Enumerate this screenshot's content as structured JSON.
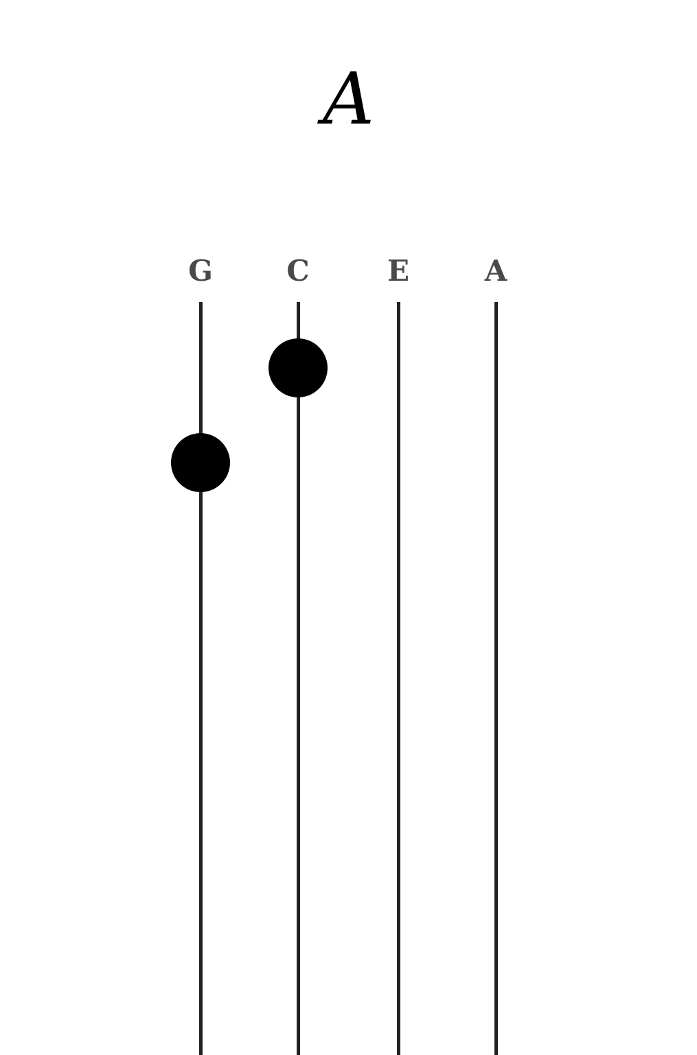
{
  "chord": {
    "name": "A"
  },
  "strings": [
    {
      "label": "G"
    },
    {
      "label": "C"
    },
    {
      "label": "E"
    },
    {
      "label": "A"
    }
  ],
  "fingers": [
    {
      "string": "G",
      "fret": 2
    },
    {
      "string": "C",
      "fret": 1
    }
  ],
  "colors": {
    "string": "#222222",
    "label": "#4a4a4a",
    "dot": "#000000",
    "background": "#ffffff"
  }
}
